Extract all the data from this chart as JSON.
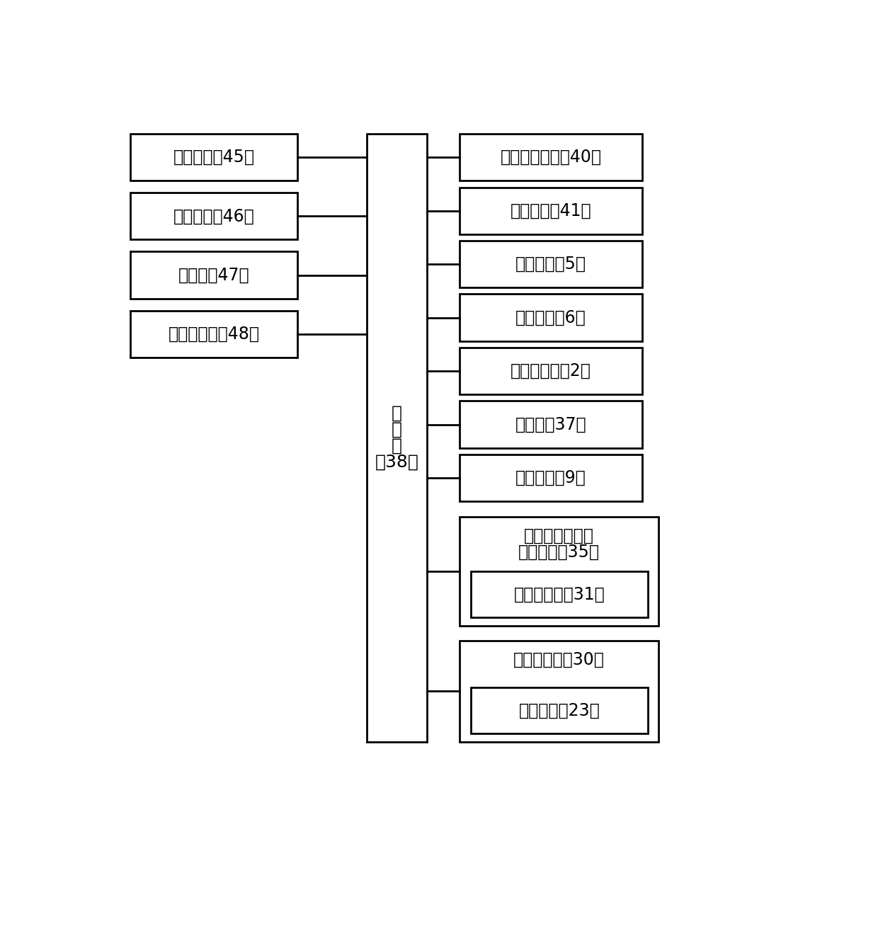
{
  "bg_color": "#ffffff",
  "box_stroke": "#000000",
  "box_fill": "#ffffff",
  "line_color": "#000000",
  "left_boxes": [
    "监控平台（45）",
    "无线模块（46）",
    "摄像头（47）",
    "气味传感器（48）"
  ],
  "center_box_lines": [
    "控",
    "制",
    "器",
    "（38）"
  ],
  "right_boxes_simple": [
    "轨道运行电机（40）",
    "提升气缸（41）",
    "一号电机（5）",
    "一号气缸（6）",
    "圈转动机构（2）",
    "电控锁（37）",
    "二号气缸（9）"
  ],
  "right_group1_outer_line1": "污泥上浮高度检",
  "right_group1_outer_line2": "测传感器（35）",
  "right_group1_inner": "测距传感器（31）",
  "right_group2_outer": "管转动机构（30）",
  "right_group2_inner": "二号电机（23）"
}
